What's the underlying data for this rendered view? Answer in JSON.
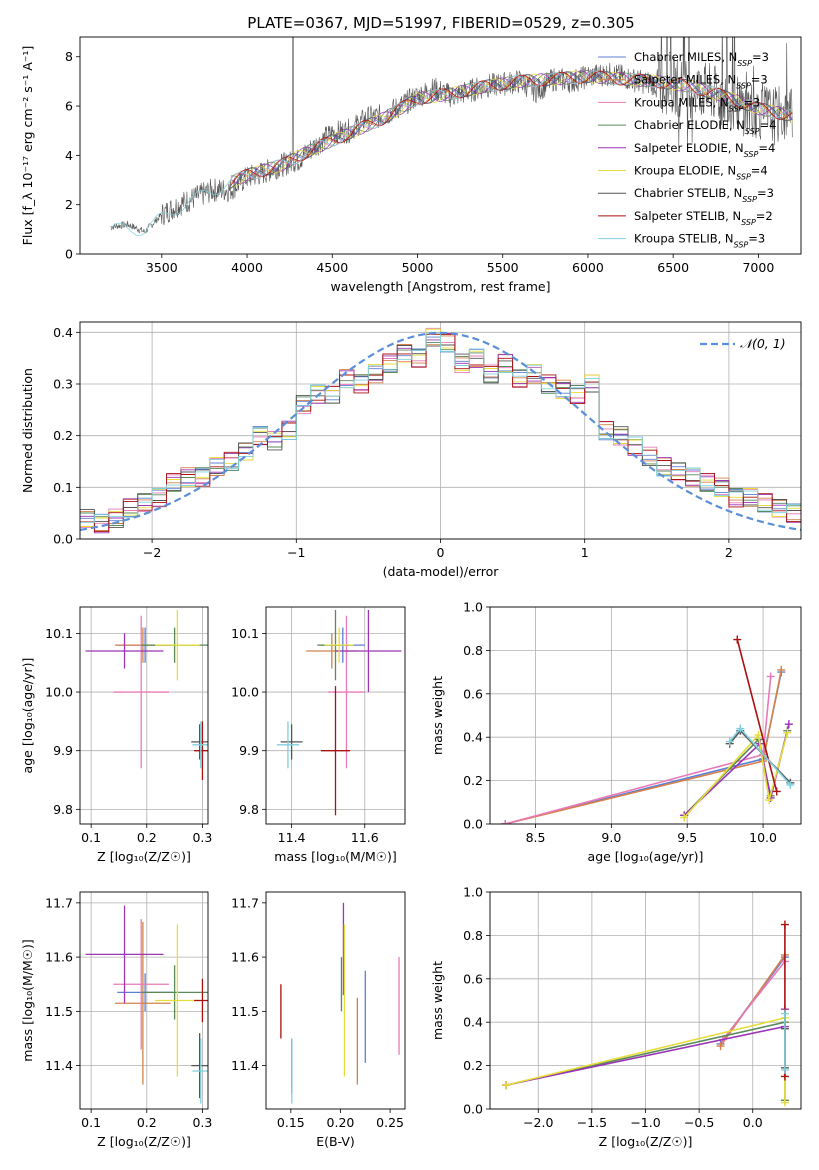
{
  "figure_title": "PLATE=0367, MJD=51997, FIBERID=0529, z=0.305",
  "colors": {
    "Chabrier MILES": "#5b7fd6",
    "Salpeter MILES": "#d4824a",
    "Kroupa MILES": "#e87ab8",
    "Chabrier ELODIE": "#5a8a5a",
    "Salpeter ELODIE": "#9b35b5",
    "Kroupa ELODIE": "#e6dd3a",
    "Chabrier STELIB": "#555555",
    "Salpeter STELIB": "#aa1111",
    "Kroupa STELIB": "#7fd0dc",
    "normal": "#5b8fd9",
    "grid": "#b0b0b0"
  },
  "chart_data": [
    {
      "id": "spectrum",
      "type": "line",
      "title": "PLATE=0367, MJD=51997, FIBERID=0529, z=0.305",
      "xlabel": "wavelength [Angstrom, rest frame]",
      "ylabel": "Flux [f_λ 10⁻¹⁷ erg cm⁻² s⁻¹ A⁻¹]",
      "xlim": [
        3020,
        7250
      ],
      "ylim": [
        0,
        8.8
      ],
      "xticks": [
        3500,
        4000,
        4500,
        5000,
        5500,
        6000,
        6500,
        7000
      ],
      "yticks": [
        0,
        2,
        4,
        6,
        8
      ],
      "grid": false,
      "legend_position": "top-right",
      "legend": [
        {
          "label": "Chabrier MILES, N_SSP=3",
          "text": "Chabrier MILES, N",
          "sub": "SSP",
          "n": "=3",
          "color_key": "Chabrier MILES"
        },
        {
          "label": "Salpeter MILES, N_SSP=3",
          "text": "Salpeter MILES, N",
          "sub": "SSP",
          "n": "=3",
          "color_key": "Salpeter MILES"
        },
        {
          "label": "Kroupa MILES, N_SSP=3",
          "text": "Kroupa MILES, N",
          "sub": "SSP",
          "n": "=3",
          "color_key": "Kroupa MILES"
        },
        {
          "label": "Chabrier ELODIE, N_SSP=4",
          "text": "Chabrier ELODIE, N",
          "sub": "SSP",
          "n": "=4",
          "color_key": "Chabrier ELODIE"
        },
        {
          "label": "Salpeter ELODIE, N_SSP=4",
          "text": "Salpeter ELODIE, N",
          "sub": "SSP",
          "n": "=4",
          "color_key": "Salpeter ELODIE"
        },
        {
          "label": "Kroupa ELODIE, N_SSP=4",
          "text": "Kroupa ELODIE, N",
          "sub": "SSP",
          "n": "=4",
          "color_key": "Kroupa ELODIE"
        },
        {
          "label": "Chabrier STELIB, N_SSP=3",
          "text": "Chabrier STELIB, N",
          "sub": "SSP",
          "n": "=3",
          "color_key": "Chabrier STELIB"
        },
        {
          "label": "Salpeter STELIB, N_SSP=2",
          "text": "Salpeter STELIB, N",
          "sub": "SSP",
          "n": "=2",
          "color_key": "Salpeter STELIB"
        },
        {
          "label": "Kroupa STELIB, N_SSP=3",
          "text": "Kroupa STELIB, N",
          "sub": "SSP",
          "n": "=3",
          "color_key": "Kroupa STELIB"
        }
      ],
      "observed_x": [
        3200,
        3300,
        3400,
        3500,
        3600,
        3700,
        3800,
        3900,
        4000,
        4100,
        4200,
        4300,
        4400,
        4500,
        4600,
        4700,
        4800,
        4900,
        5000,
        5100,
        5200,
        5300,
        5400,
        5500,
        5600,
        5700,
        5800,
        5900,
        6000,
        6100,
        6200,
        6300,
        6400,
        6500,
        6600,
        6700,
        6800,
        6900,
        7000,
        7100,
        7200
      ],
      "observed_y": [
        1.1,
        1.2,
        0.9,
        1.6,
        2.0,
        2.3,
        2.6,
        2.6,
        3.1,
        3.3,
        3.6,
        3.8,
        4.4,
        4.9,
        5.0,
        5.5,
        5.6,
        6.0,
        6.4,
        6.7,
        6.4,
        6.6,
        6.8,
        6.9,
        7.0,
        6.6,
        7.1,
        7.0,
        7.2,
        7.3,
        7.2,
        7.0,
        6.9,
        6.8,
        6.7,
        6.6,
        6.3,
        6.0,
        5.8,
        5.6,
        5.7
      ],
      "model_x": [
        3200,
        3400,
        3600,
        3800,
        4000,
        4200,
        4400,
        4600,
        4800,
        5000,
        5200,
        5400,
        5600,
        5800,
        6000,
        6200,
        6400,
        6600,
        6800,
        7000,
        7200
      ],
      "model_y": [
        1.0,
        1.0,
        1.9,
        2.6,
        3.2,
        3.6,
        4.3,
        4.9,
        5.5,
        6.3,
        6.5,
        6.8,
        7.0,
        7.1,
        7.2,
        7.1,
        7.0,
        6.8,
        6.4,
        5.9,
        5.6
      ],
      "models_start": 3900
    },
    {
      "id": "residuals",
      "type": "line",
      "xlabel": "(data-model)/error",
      "ylabel": "Normed distribution",
      "xlim": [
        -2.5,
        2.5
      ],
      "ylim": [
        0,
        0.42
      ],
      "xticks": [
        -2,
        -1,
        0,
        1,
        2
      ],
      "yticks": [
        0.0,
        0.1,
        0.2,
        0.3,
        0.4
      ],
      "grid": true,
      "legend_position": "top-right",
      "legend": [
        {
          "label": "𝒩(0, 1)",
          "color_key": "normal"
        }
      ],
      "hist_x": [
        -2.5,
        -2.4,
        -2.3,
        -2.2,
        -2.1,
        -2.0,
        -1.9,
        -1.8,
        -1.7,
        -1.6,
        -1.5,
        -1.4,
        -1.3,
        -1.2,
        -1.1,
        -1.0,
        -0.9,
        -0.8,
        -0.7,
        -0.6,
        -0.5,
        -0.4,
        -0.3,
        -0.2,
        -0.1,
        0.0,
        0.1,
        0.2,
        0.3,
        0.4,
        0.5,
        0.6,
        0.7,
        0.8,
        0.9,
        1.0,
        1.1,
        1.2,
        1.3,
        1.4,
        1.5,
        1.6,
        1.7,
        1.8,
        1.9,
        2.0,
        2.1,
        2.2,
        2.3,
        2.4,
        2.5
      ],
      "hist_y": [
        0.04,
        0.03,
        0.04,
        0.06,
        0.07,
        0.08,
        0.11,
        0.12,
        0.12,
        0.14,
        0.15,
        0.17,
        0.2,
        0.19,
        0.21,
        0.26,
        0.28,
        0.28,
        0.31,
        0.3,
        0.32,
        0.34,
        0.36,
        0.35,
        0.39,
        0.38,
        0.34,
        0.35,
        0.32,
        0.34,
        0.31,
        0.32,
        0.3,
        0.29,
        0.28,
        0.3,
        0.21,
        0.2,
        0.18,
        0.16,
        0.14,
        0.13,
        0.12,
        0.11,
        0.1,
        0.08,
        0.08,
        0.07,
        0.06,
        0.05,
        0.04
      ],
      "curve": "N(0,1) density"
    },
    {
      "id": "age-vs-Z",
      "type": "scatter",
      "xlabel": "Z [log₁₀(Z/Z☉)]",
      "ylabel": "age  [log₁₀(age/yr)]",
      "xlim": [
        0.08,
        0.31
      ],
      "ylim": [
        9.775,
        10.145
      ],
      "xticks": [
        0.1,
        0.2,
        0.3
      ],
      "yticks": [
        9.8,
        9.9,
        10.0,
        10.1
      ],
      "grid": true,
      "points": [
        {
          "model": "Chabrier MILES",
          "x": 0.197,
          "y": 10.08,
          "xerr": 0.05,
          "yerr": 0.03
        },
        {
          "model": "Salpeter MILES",
          "x": 0.193,
          "y": 10.08,
          "xerr": 0.05,
          "yerr": 0.03
        },
        {
          "model": "Kroupa MILES",
          "x": 0.19,
          "y": 10.0,
          "xerr": 0.05,
          "yerr": 0.13
        },
        {
          "model": "Chabrier ELODIE",
          "x": 0.25,
          "y": 10.08,
          "xerr": 0.06,
          "yerr": 0.03
        },
        {
          "model": "Salpeter ELODIE",
          "x": 0.16,
          "y": 10.07,
          "xerr": 0.07,
          "yerr": 0.03
        },
        {
          "model": "Kroupa ELODIE",
          "x": 0.255,
          "y": 10.08,
          "xerr": 0.04,
          "yerr": 0.06
        },
        {
          "model": "Chabrier STELIB",
          "x": 0.295,
          "y": 9.915,
          "xerr": 0.015,
          "yerr": 0.03
        },
        {
          "model": "Salpeter STELIB",
          "x": 0.3,
          "y": 9.9,
          "xerr": 0.015,
          "yerr": 0.05
        },
        {
          "model": "Kroupa STELIB",
          "x": 0.297,
          "y": 9.91,
          "xerr": 0.015,
          "yerr": 0.04
        }
      ]
    },
    {
      "id": "age-vs-mass",
      "type": "scatter",
      "xlabel": "mass [log₁₀(M/M☉)]",
      "ylabel": "",
      "xlim": [
        11.33,
        11.71
      ],
      "ylim": [
        9.775,
        10.145
      ],
      "xticks": [
        11.4,
        11.6
      ],
      "yticks": [
        9.8,
        9.9,
        10.0,
        10.1
      ],
      "grid": true,
      "points": [
        {
          "model": "Chabrier MILES",
          "x": 11.54,
          "y": 10.08,
          "xerr": 0.06,
          "yerr": 0.03
        },
        {
          "model": "Salpeter MILES",
          "x": 11.51,
          "y": 10.07,
          "xerr": 0.07,
          "yerr": 0.03
        },
        {
          "model": "Kroupa MILES",
          "x": 11.55,
          "y": 10.0,
          "xerr": 0.05,
          "yerr": 0.13
        },
        {
          "model": "Chabrier ELODIE",
          "x": 11.52,
          "y": 10.08,
          "xerr": 0.05,
          "yerr": 0.06
        },
        {
          "model": "Salpeter ELODIE",
          "x": 11.61,
          "y": 10.07,
          "xerr": 0.09,
          "yerr": 0.07
        },
        {
          "model": "Kroupa ELODIE",
          "x": 11.53,
          "y": 10.08,
          "xerr": 0.04,
          "yerr": 0.03
        },
        {
          "model": "Chabrier STELIB",
          "x": 11.4,
          "y": 9.915,
          "xerr": 0.03,
          "yerr": 0.03
        },
        {
          "model": "Salpeter STELIB",
          "x": 11.52,
          "y": 9.9,
          "xerr": 0.04,
          "yerr": 0.11
        },
        {
          "model": "Kroupa STELIB",
          "x": 11.39,
          "y": 9.91,
          "xerr": 0.03,
          "yerr": 0.04
        }
      ]
    },
    {
      "id": "mass-vs-Z",
      "type": "scatter",
      "xlabel": "Z [log₁₀(Z/Z☉)]",
      "ylabel": "mass [log₁₀(M/M☉)]",
      "xlim": [
        0.08,
        0.31
      ],
      "ylim": [
        11.32,
        11.72
      ],
      "xticks": [
        0.1,
        0.2,
        0.3
      ],
      "yticks": [
        11.4,
        11.5,
        11.6,
        11.7
      ],
      "grid": true,
      "points": [
        {
          "model": "Chabrier MILES",
          "x": 0.197,
          "y": 11.535,
          "xerr": 0.05,
          "yerr": 0.035
        },
        {
          "model": "Salpeter MILES",
          "x": 0.193,
          "y": 11.515,
          "xerr": 0.05,
          "yerr": 0.15
        },
        {
          "model": "Kroupa MILES",
          "x": 0.19,
          "y": 11.55,
          "xerr": 0.05,
          "yerr": 0.12
        },
        {
          "model": "Chabrier ELODIE",
          "x": 0.25,
          "y": 11.535,
          "xerr": 0.06,
          "yerr": 0.05
        },
        {
          "model": "Salpeter ELODIE",
          "x": 0.16,
          "y": 11.605,
          "xerr": 0.07,
          "yerr": 0.09
        },
        {
          "model": "Kroupa ELODIE",
          "x": 0.255,
          "y": 11.52,
          "xerr": 0.04,
          "yerr": 0.14
        },
        {
          "model": "Chabrier STELIB",
          "x": 0.295,
          "y": 11.4,
          "xerr": 0.015,
          "yerr": 0.06
        },
        {
          "model": "Salpeter STELIB",
          "x": 0.3,
          "y": 11.52,
          "xerr": 0.015,
          "yerr": 0.04
        },
        {
          "model": "Kroupa STELIB",
          "x": 0.297,
          "y": 11.39,
          "xerr": 0.015,
          "yerr": 0.06
        }
      ]
    },
    {
      "id": "mass-vs-ebv",
      "type": "scatter",
      "xlabel": "E(B-V)",
      "ylabel": "",
      "xlim": [
        0.125,
        0.265
      ],
      "ylim": [
        11.32,
        11.72
      ],
      "xticks": [
        0.15,
        0.2,
        0.25
      ],
      "yticks": [
        11.4,
        11.5,
        11.6,
        11.7
      ],
      "grid": false,
      "points": [
        {
          "model": "Chabrier MILES",
          "x": 0.225,
          "y": 11.49,
          "yerr": 0.085
        },
        {
          "model": "Salpeter MILES",
          "x": 0.217,
          "y": 11.445,
          "yerr": 0.08
        },
        {
          "model": "Kroupa MILES",
          "x": 0.259,
          "y": 11.51,
          "yerr": 0.09
        },
        {
          "model": "Chabrier ELODIE",
          "x": 0.201,
          "y": 11.55,
          "yerr": 0.05
        },
        {
          "model": "Salpeter ELODIE",
          "x": 0.203,
          "y": 11.615,
          "yerr": 0.085
        },
        {
          "model": "Kroupa ELODIE",
          "x": 0.204,
          "y": 11.52,
          "yerr": 0.14
        },
        {
          "model": "Chabrier STELIB",
          "x": 0.151,
          "y": 11.4,
          "yerr": 0.05
        },
        {
          "model": "Salpeter STELIB",
          "x": 0.14,
          "y": 11.5,
          "yerr": 0.05
        },
        {
          "model": "Kroupa STELIB",
          "x": 0.151,
          "y": 11.39,
          "yerr": 0.06
        }
      ]
    },
    {
      "id": "weight-vs-age",
      "type": "line",
      "xlabel": "age  [log₁₀(age/yr)]",
      "ylabel": "mass weight",
      "xlim": [
        8.2,
        10.25
      ],
      "ylim": [
        0,
        1.0
      ],
      "xticks": [
        8.5,
        9.0,
        9.5,
        10.0
      ],
      "yticks": [
        0.0,
        0.2,
        0.4,
        0.6,
        0.8,
        1.0
      ],
      "grid": true,
      "series": [
        {
          "model": "Chabrier MILES",
          "x": [
            8.3,
            10.0,
            10.12
          ],
          "y": [
            0.0,
            0.3,
            0.7
          ]
        },
        {
          "model": "Salpeter MILES",
          "x": [
            8.3,
            10.0,
            10.12
          ],
          "y": [
            0.0,
            0.29,
            0.71
          ]
        },
        {
          "model": "Kroupa MILES",
          "x": [
            8.3,
            10.0,
            10.05
          ],
          "y": [
            0.0,
            0.32,
            0.68
          ]
        },
        {
          "model": "Chabrier ELODIE",
          "x": [
            9.48,
            9.97,
            10.05,
            10.16
          ],
          "y": [
            0.04,
            0.39,
            0.13,
            0.43
          ]
        },
        {
          "model": "Salpeter ELODIE",
          "x": [
            9.48,
            9.98,
            10.05,
            10.17
          ],
          "y": [
            0.04,
            0.37,
            0.12,
            0.46
          ]
        },
        {
          "model": "Kroupa ELODIE",
          "x": [
            9.48,
            9.97,
            10.04,
            10.16
          ],
          "y": [
            0.03,
            0.41,
            0.11,
            0.42
          ]
        },
        {
          "model": "Chabrier STELIB",
          "x": [
            9.78,
            9.85,
            10.18
          ],
          "y": [
            0.37,
            0.43,
            0.19
          ]
        },
        {
          "model": "Salpeter STELIB",
          "x": [
            9.83,
            10.09
          ],
          "y": [
            0.85,
            0.15
          ]
        },
        {
          "model": "Kroupa STELIB",
          "x": [
            9.78,
            9.85,
            10.18
          ],
          "y": [
            0.38,
            0.44,
            0.18
          ]
        }
      ]
    },
    {
      "id": "weight-vs-Z",
      "type": "line",
      "xlabel": "Z [log₁₀(Z/Z☉)]",
      "ylabel": "mass weight",
      "xlim": [
        -2.45,
        0.45
      ],
      "ylim": [
        0,
        1.0
      ],
      "xticks": [
        -2.0,
        -1.5,
        -1.0,
        -0.5,
        0.0
      ],
      "yticks": [
        0.0,
        0.2,
        0.4,
        0.6,
        0.8,
        1.0
      ],
      "grid": true,
      "series": [
        {
          "model": "Chabrier MILES",
          "x": [
            -0.3,
            0.3
          ],
          "y": [
            0.3,
            0.7
          ]
        },
        {
          "model": "Salpeter MILES",
          "x": [
            -0.3,
            0.3
          ],
          "y": [
            0.29,
            0.71
          ]
        },
        {
          "model": "Kroupa MILES",
          "x": [
            -0.28,
            0.3
          ],
          "y": [
            0.32,
            0.68
          ]
        },
        {
          "model": "Chabrier ELODIE",
          "x": [
            -2.3,
            0.3,
            0.3
          ],
          "y": [
            0.11,
            0.4,
            0.04
          ]
        },
        {
          "model": "Salpeter ELODIE",
          "x": [
            -2.3,
            0.3,
            0.3
          ],
          "y": [
            0.11,
            0.38,
            0.46
          ]
        },
        {
          "model": "Kroupa ELODIE",
          "x": [
            -2.3,
            0.3,
            0.3
          ],
          "y": [
            0.11,
            0.42,
            0.03
          ]
        },
        {
          "model": "Chabrier STELIB",
          "x": [
            0.3,
            0.3
          ],
          "y": [
            0.19,
            0.37
          ]
        },
        {
          "model": "Salpeter STELIB",
          "x": [
            0.3,
            0.3
          ],
          "y": [
            0.15,
            0.85
          ]
        },
        {
          "model": "Kroupa STELIB",
          "x": [
            0.3,
            0.3
          ],
          "y": [
            0.18,
            0.44
          ]
        }
      ]
    }
  ]
}
